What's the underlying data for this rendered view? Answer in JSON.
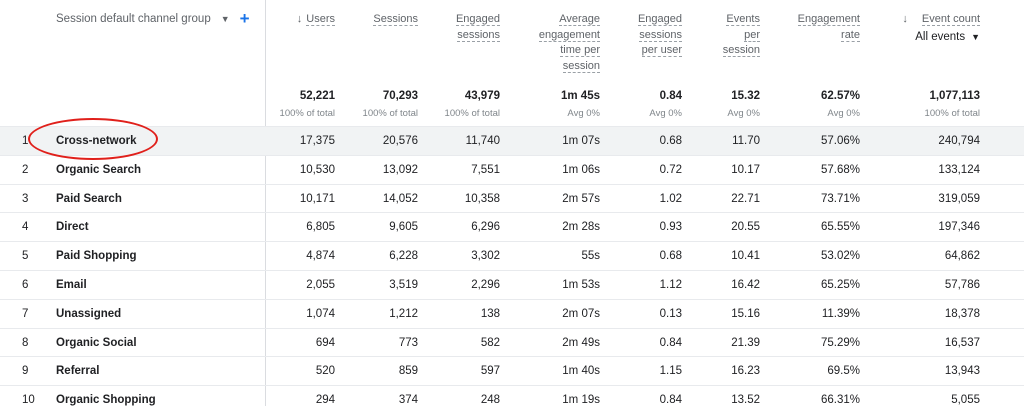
{
  "dimension_header": "Session default channel group",
  "columns": [
    {
      "key": "users",
      "label": [
        "Users"
      ],
      "right": 335,
      "sort": true,
      "total": "52,221",
      "sub": "100% of total"
    },
    {
      "key": "sessions",
      "label": [
        "Sessions"
      ],
      "right": 418,
      "total": "70,293",
      "sub": "100% of total"
    },
    {
      "key": "engaged_sessions",
      "label": [
        "Engaged",
        "sessions"
      ],
      "right": 500,
      "total": "43,979",
      "sub": "100% of total"
    },
    {
      "key": "avg_engagement_time",
      "label": [
        "Average",
        "engagement",
        "time per",
        "session"
      ],
      "right": 600,
      "total": "1m 45s",
      "sub": "Avg 0%"
    },
    {
      "key": "engaged_per_user",
      "label": [
        "Engaged",
        "sessions",
        "per user"
      ],
      "right": 682,
      "total": "0.84",
      "sub": "Avg 0%"
    },
    {
      "key": "events_per_session",
      "label": [
        "Events",
        "per",
        "session"
      ],
      "right": 760,
      "total": "15.32",
      "sub": "Avg 0%"
    },
    {
      "key": "engagement_rate",
      "label": [
        "Engagement",
        "rate"
      ],
      "right": 860,
      "total": "62.57%",
      "sub": "Avg 0%"
    },
    {
      "key": "event_count",
      "label": [
        "Event count"
      ],
      "right": 980,
      "total": "1,077,113",
      "sub": "100% of total",
      "dropdown": "All events"
    }
  ],
  "rows": [
    {
      "idx": "1",
      "channel": "Cross-network",
      "values": [
        "17,375",
        "20,576",
        "11,740",
        "1m 07s",
        "0.68",
        "11.70",
        "57.06%",
        "240,794"
      ]
    },
    {
      "idx": "2",
      "channel": "Organic Search",
      "values": [
        "10,530",
        "13,092",
        "7,551",
        "1m 06s",
        "0.72",
        "10.17",
        "57.68%",
        "133,124"
      ]
    },
    {
      "idx": "3",
      "channel": "Paid Search",
      "values": [
        "10,171",
        "14,052",
        "10,358",
        "2m 57s",
        "1.02",
        "22.71",
        "73.71%",
        "319,059"
      ]
    },
    {
      "idx": "4",
      "channel": "Direct",
      "values": [
        "6,805",
        "9,605",
        "6,296",
        "2m 28s",
        "0.93",
        "20.55",
        "65.55%",
        "197,346"
      ]
    },
    {
      "idx": "5",
      "channel": "Paid Shopping",
      "values": [
        "4,874",
        "6,228",
        "3,302",
        "55s",
        "0.68",
        "10.41",
        "53.02%",
        "64,862"
      ]
    },
    {
      "idx": "6",
      "channel": "Email",
      "values": [
        "2,055",
        "3,519",
        "2,296",
        "1m 53s",
        "1.12",
        "16.42",
        "65.25%",
        "57,786"
      ]
    },
    {
      "idx": "7",
      "channel": "Unassigned",
      "values": [
        "1,074",
        "1,212",
        "138",
        "2m 07s",
        "0.13",
        "15.16",
        "11.39%",
        "18,378"
      ]
    },
    {
      "idx": "8",
      "channel": "Organic Social",
      "values": [
        "694",
        "773",
        "582",
        "2m 49s",
        "0.84",
        "21.39",
        "75.29%",
        "16,537"
      ]
    },
    {
      "idx": "9",
      "channel": "Referral",
      "values": [
        "520",
        "859",
        "597",
        "1m 40s",
        "1.15",
        "16.23",
        "69.5%",
        "13,943"
      ]
    },
    {
      "idx": "10",
      "channel": "Organic Shopping",
      "values": [
        "294",
        "374",
        "248",
        "1m 19s",
        "0.84",
        "13.52",
        "66.31%",
        "5,055"
      ]
    }
  ]
}
